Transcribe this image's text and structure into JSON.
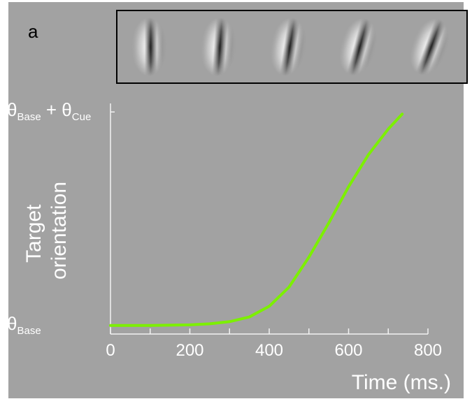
{
  "chart_data": {
    "type": "line",
    "panel_label": "a",
    "ylabel": [
      "Target",
      "orientation"
    ],
    "xlabel": "Time (ms.)",
    "x": [
      0,
      100,
      200,
      250,
      300,
      350,
      400,
      450,
      500,
      550,
      600,
      650,
      700,
      735
    ],
    "series": [
      {
        "color": "#7cf000",
        "values": [
          0,
          0,
          0.003,
          0.008,
          0.018,
          0.04,
          0.09,
          0.18,
          0.32,
          0.48,
          0.65,
          0.8,
          0.92,
          0.99
        ]
      }
    ],
    "xlim": [
      0,
      800
    ],
    "xticks": [
      0,
      200,
      400,
      600,
      800
    ],
    "xminorticks": [
      100,
      300,
      500,
      700
    ],
    "ylim": [
      -0.04,
      1.04
    ],
    "yticks": [
      {
        "value": 0,
        "label": [
          "θ",
          "Base"
        ]
      },
      {
        "value": 1,
        "label": [
          "θ",
          "Base",
          " + θ",
          "Cue"
        ]
      }
    ]
  }
}
